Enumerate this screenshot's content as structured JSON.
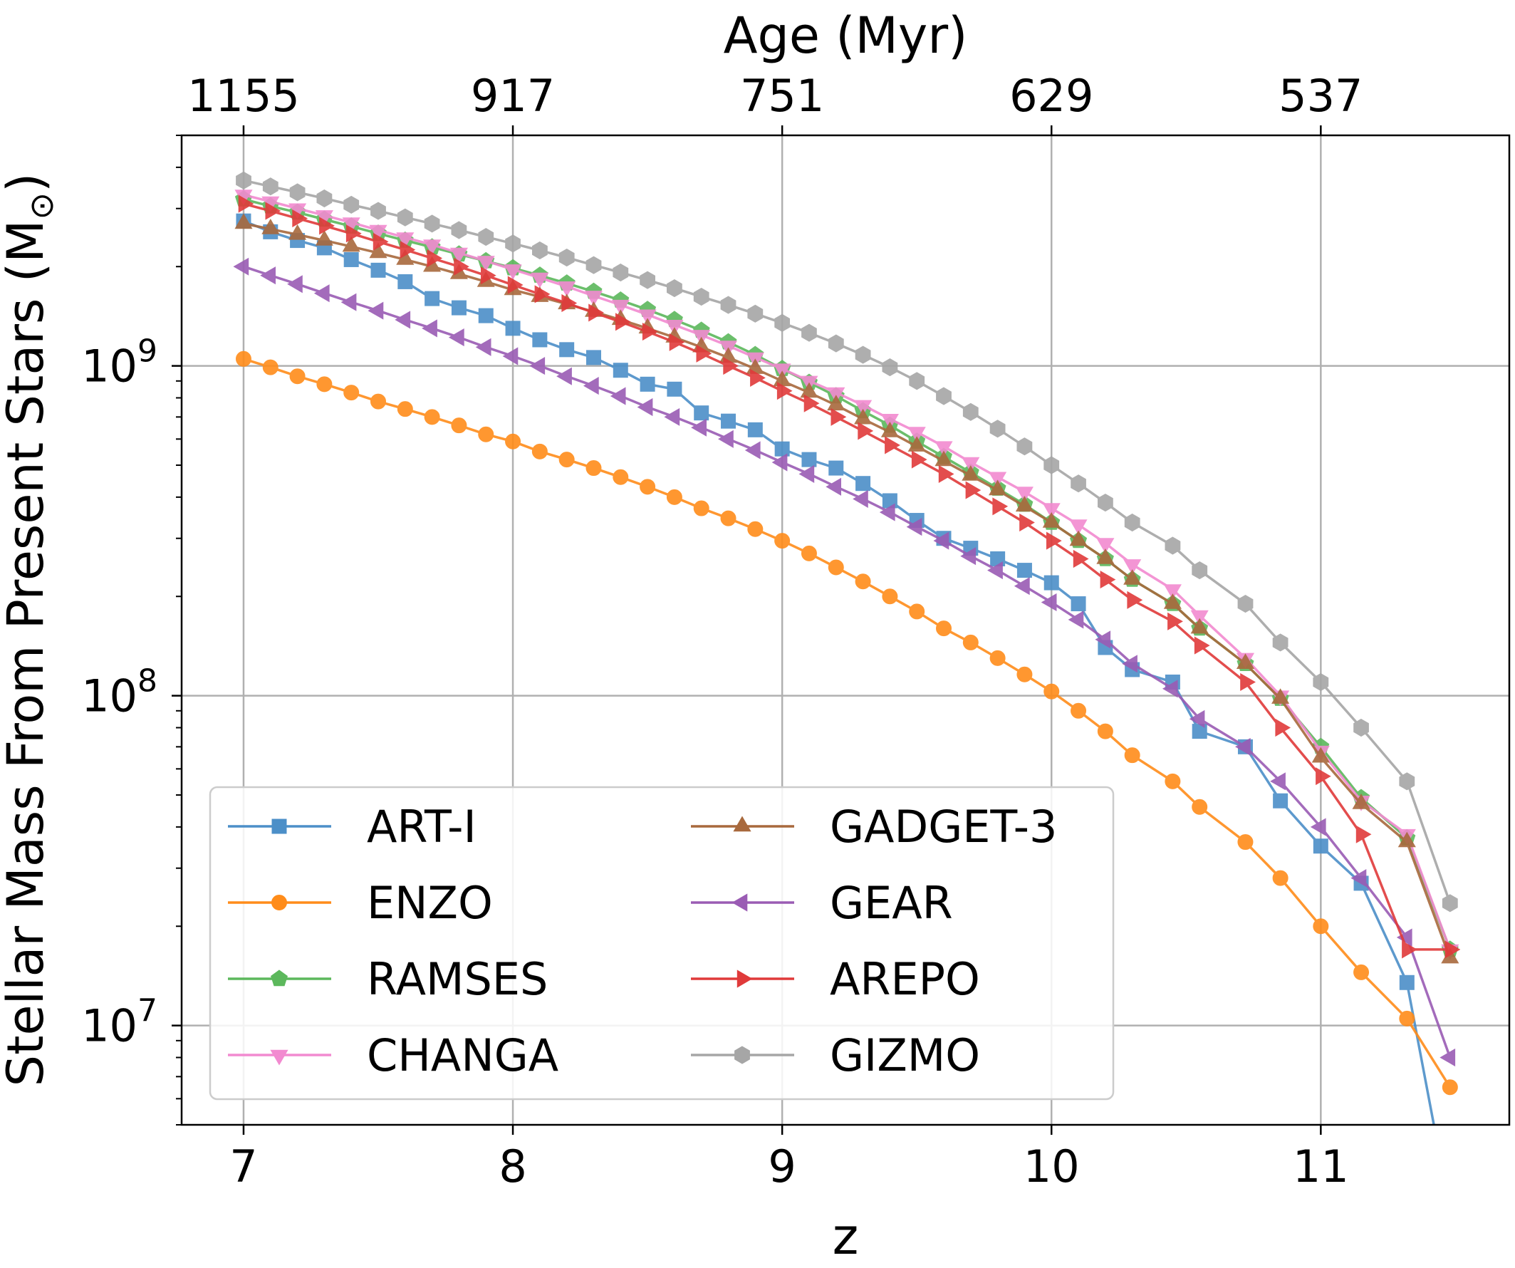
{
  "chart_data": {
    "type": "line",
    "title": "",
    "xlabel": "z",
    "ylabel": "Stellar Mass From Present Stars (M",
    "ylabel_sub": "⊙",
    "ylabel_close": ")",
    "top_xlabel": "Age (Myr)",
    "xlim": [
      6.77,
      11.7
    ],
    "ylim": [
      5000000.0,
      5000000000.0
    ],
    "yscale": "log",
    "grid": true,
    "legend_position": "lower-left",
    "x_ticks": [
      {
        "value": 7,
        "label": "7"
      },
      {
        "value": 8,
        "label": "8"
      },
      {
        "value": 9,
        "label": "9"
      },
      {
        "value": 10,
        "label": "10"
      },
      {
        "value": 11,
        "label": "11"
      }
    ],
    "top_ticks": [
      {
        "value": 7,
        "label": "1155"
      },
      {
        "value": 8,
        "label": "917"
      },
      {
        "value": 9,
        "label": "751"
      },
      {
        "value": 10,
        "label": "629"
      },
      {
        "value": 11,
        "label": "537"
      }
    ],
    "y_ticks": [
      {
        "value": 10000000,
        "base": "10",
        "exp": "7"
      },
      {
        "value": 100000000,
        "base": "10",
        "exp": "8"
      },
      {
        "value": 1000000000,
        "base": "10",
        "exp": "9"
      }
    ],
    "series": [
      {
        "name": "ART-I",
        "color": "#4c8fc8",
        "marker": "square",
        "x": [
          7.0,
          7.1,
          7.2,
          7.3,
          7.4,
          7.5,
          7.6,
          7.7,
          7.8,
          7.9,
          8.0,
          8.1,
          8.2,
          8.3,
          8.4,
          8.5,
          8.6,
          8.7,
          8.8,
          8.9,
          9.0,
          9.1,
          9.2,
          9.3,
          9.4,
          9.5,
          9.6,
          9.7,
          9.8,
          9.9,
          10.0,
          10.1,
          10.2,
          10.3,
          10.45,
          10.55,
          10.72,
          10.85,
          11.0,
          11.15,
          11.32,
          11.42
        ],
        "y": [
          2750000000.0,
          2550000000.0,
          2400000000.0,
          2280000000.0,
          2100000000.0,
          1950000000.0,
          1800000000.0,
          1600000000.0,
          1500000000.0,
          1420000000.0,
          1300000000.0,
          1200000000.0,
          1120000000.0,
          1060000000.0,
          970000000.0,
          880000000.0,
          850000000.0,
          720000000.0,
          680000000.0,
          640000000.0,
          560000000.0,
          520000000.0,
          490000000.0,
          440000000.0,
          390000000.0,
          340000000.0,
          300000000.0,
          280000000.0,
          260000000.0,
          240000000.0,
          220000000.0,
          190000000.0,
          140000000.0,
          120000000.0,
          110000000.0,
          78000000.0,
          70000000.0,
          48000000.0,
          35000000.0,
          27000000.0,
          13500000.0,
          5000000.0
        ]
      },
      {
        "name": "ENZO",
        "color": "#ff8c1a",
        "marker": "circle",
        "x": [
          7.0,
          7.1,
          7.2,
          7.3,
          7.4,
          7.5,
          7.6,
          7.7,
          7.8,
          7.9,
          8.0,
          8.1,
          8.2,
          8.3,
          8.4,
          8.5,
          8.6,
          8.7,
          8.8,
          8.9,
          9.0,
          9.1,
          9.2,
          9.3,
          9.4,
          9.5,
          9.6,
          9.7,
          9.8,
          9.9,
          10.0,
          10.1,
          10.2,
          10.3,
          10.45,
          10.55,
          10.72,
          10.85,
          11.0,
          11.15,
          11.32,
          11.48
        ],
        "y": [
          1050000000.0,
          990000000.0,
          930000000.0,
          880000000.0,
          830000000.0,
          780000000.0,
          740000000.0,
          700000000.0,
          660000000.0,
          620000000.0,
          590000000.0,
          550000000.0,
          520000000.0,
          490000000.0,
          460000000.0,
          430000000.0,
          400000000.0,
          370000000.0,
          345000000.0,
          320000000.0,
          295000000.0,
          270000000.0,
          245000000.0,
          222000000.0,
          200000000.0,
          180000000.0,
          160000000.0,
          145000000.0,
          130000000.0,
          116000000.0,
          103000000.0,
          90000000.0,
          78000000.0,
          66000000.0,
          55000000.0,
          46000000.0,
          36000000.0,
          28000000.0,
          20000000.0,
          14500000.0,
          10500000.0,
          6500000.0
        ]
      },
      {
        "name": "RAMSES",
        "color": "#5cb85c",
        "marker": "pentagon",
        "x": [
          7.0,
          7.1,
          7.2,
          7.3,
          7.4,
          7.5,
          7.6,
          7.7,
          7.8,
          7.9,
          8.0,
          8.1,
          8.2,
          8.3,
          8.4,
          8.5,
          8.6,
          8.7,
          8.8,
          8.9,
          9.0,
          9.1,
          9.2,
          9.3,
          9.4,
          9.5,
          9.6,
          9.7,
          9.8,
          9.9,
          10.0,
          10.1,
          10.2,
          10.3,
          10.45,
          10.55,
          10.72,
          10.85,
          11.0,
          11.15,
          11.32,
          11.48
        ],
        "y": [
          3200000000.0,
          3050000000.0,
          2920000000.0,
          2780000000.0,
          2650000000.0,
          2520000000.0,
          2400000000.0,
          2290000000.0,
          2180000000.0,
          2080000000.0,
          1980000000.0,
          1880000000.0,
          1780000000.0,
          1680000000.0,
          1580000000.0,
          1480000000.0,
          1380000000.0,
          1280000000.0,
          1180000000.0,
          1080000000.0,
          980000000.0,
          890000000.0,
          810000000.0,
          730000000.0,
          660000000.0,
          590000000.0,
          530000000.0,
          475000000.0,
          425000000.0,
          380000000.0,
          335000000.0,
          295000000.0,
          260000000.0,
          225000000.0,
          190000000.0,
          160000000.0,
          125000000.0,
          98000000.0,
          70000000.0,
          49000000.0,
          37000000.0,
          17000000.0
        ]
      },
      {
        "name": "CHANGA",
        "color": "#f28ad0",
        "marker": "triangle-down",
        "x": [
          7.0,
          7.1,
          7.2,
          7.3,
          7.4,
          7.5,
          7.6,
          7.7,
          7.8,
          7.9,
          8.0,
          8.1,
          8.2,
          8.3,
          8.4,
          8.5,
          8.6,
          8.7,
          8.8,
          8.9,
          9.0,
          9.1,
          9.2,
          9.3,
          9.4,
          9.5,
          9.6,
          9.7,
          9.8,
          9.9,
          10.0,
          10.1,
          10.2,
          10.3,
          10.45,
          10.55,
          10.72,
          10.85,
          11.0,
          11.15,
          11.32,
          11.48
        ],
        "y": [
          3300000000.0,
          3150000000.0,
          3000000000.0,
          2860000000.0,
          2720000000.0,
          2580000000.0,
          2450000000.0,
          2330000000.0,
          2200000000.0,
          2080000000.0,
          1960000000.0,
          1850000000.0,
          1740000000.0,
          1630000000.0,
          1530000000.0,
          1430000000.0,
          1330000000.0,
          1240000000.0,
          1150000000.0,
          1060000000.0,
          980000000.0,
          900000000.0,
          830000000.0,
          760000000.0,
          690000000.0,
          630000000.0,
          570000000.0,
          510000000.0,
          460000000.0,
          415000000.0,
          370000000.0,
          330000000.0,
          290000000.0,
          250000000.0,
          210000000.0,
          175000000.0,
          130000000.0,
          100000000.0,
          68000000.0,
          48000000.0,
          38000000.0,
          17000000.0
        ]
      },
      {
        "name": "GADGET-3",
        "color": "#a8693d",
        "marker": "triangle-up",
        "x": [
          7.0,
          7.1,
          7.2,
          7.3,
          7.4,
          7.5,
          7.6,
          7.7,
          7.8,
          7.9,
          8.0,
          8.1,
          8.2,
          8.3,
          8.4,
          8.5,
          8.6,
          8.7,
          8.8,
          8.9,
          9.0,
          9.1,
          9.2,
          9.3,
          9.4,
          9.5,
          9.6,
          9.7,
          9.8,
          9.9,
          10.0,
          10.1,
          10.2,
          10.3,
          10.45,
          10.55,
          10.72,
          10.85,
          11.0,
          11.15,
          11.32,
          11.48
        ],
        "y": [
          2700000000.0,
          2600000000.0,
          2500000000.0,
          2400000000.0,
          2300000000.0,
          2200000000.0,
          2100000000.0,
          2000000000.0,
          1900000000.0,
          1800000000.0,
          1700000000.0,
          1620000000.0,
          1540000000.0,
          1460000000.0,
          1380000000.0,
          1300000000.0,
          1220000000.0,
          1140000000.0,
          1060000000.0,
          980000000.0,
          900000000.0,
          830000000.0,
          760000000.0,
          690000000.0,
          630000000.0,
          570000000.0,
          515000000.0,
          465000000.0,
          420000000.0,
          375000000.0,
          335000000.0,
          295000000.0,
          260000000.0,
          225000000.0,
          190000000.0,
          160000000.0,
          125000000.0,
          98000000.0,
          65000000.0,
          47000000.0,
          36000000.0,
          16000000.0
        ]
      },
      {
        "name": "GEAR",
        "color": "#9a5cb4",
        "marker": "triangle-left",
        "x": [
          7.0,
          7.1,
          7.2,
          7.3,
          7.4,
          7.5,
          7.6,
          7.7,
          7.8,
          7.9,
          8.0,
          8.1,
          8.2,
          8.3,
          8.4,
          8.5,
          8.6,
          8.7,
          8.8,
          8.9,
          9.0,
          9.1,
          9.2,
          9.3,
          9.4,
          9.5,
          9.6,
          9.7,
          9.8,
          9.9,
          10.0,
          10.1,
          10.2,
          10.3,
          10.45,
          10.55,
          10.72,
          10.85,
          11.0,
          11.15,
          11.32,
          11.48
        ],
        "y": [
          2000000000.0,
          1880000000.0,
          1770000000.0,
          1660000000.0,
          1560000000.0,
          1470000000.0,
          1380000000.0,
          1300000000.0,
          1220000000.0,
          1140000000.0,
          1070000000.0,
          1000000000.0,
          930000000.0,
          870000000.0,
          810000000.0,
          750000000.0,
          700000000.0,
          650000000.0,
          600000000.0,
          555000000.0,
          510000000.0,
          470000000.0,
          430000000.0,
          395000000.0,
          360000000.0,
          325000000.0,
          295000000.0,
          265000000.0,
          240000000.0,
          215000000.0,
          192000000.0,
          170000000.0,
          148000000.0,
          125000000.0,
          105000000.0,
          85000000.0,
          70000000.0,
          55000000.0,
          40000000.0,
          28000000.0,
          18500000.0,
          8000000.0
        ]
      },
      {
        "name": "AREPO",
        "color": "#e03a3a",
        "marker": "triangle-right",
        "x": [
          7.0,
          7.1,
          7.2,
          7.3,
          7.4,
          7.5,
          7.6,
          7.7,
          7.8,
          7.9,
          8.0,
          8.1,
          8.2,
          8.3,
          8.4,
          8.5,
          8.6,
          8.7,
          8.8,
          8.9,
          9.0,
          9.1,
          9.2,
          9.3,
          9.4,
          9.5,
          9.6,
          9.7,
          9.8,
          9.9,
          10.0,
          10.1,
          10.2,
          10.3,
          10.45,
          10.55,
          10.72,
          10.85,
          11.0,
          11.15,
          11.32,
          11.48
        ],
        "y": [
          3100000000.0,
          2950000000.0,
          2800000000.0,
          2660000000.0,
          2520000000.0,
          2380000000.0,
          2250000000.0,
          2120000000.0,
          2000000000.0,
          1880000000.0,
          1760000000.0,
          1650000000.0,
          1550000000.0,
          1450000000.0,
          1360000000.0,
          1270000000.0,
          1180000000.0,
          1090000000.0,
          1000000000.0,
          920000000.0,
          840000000.0,
          770000000.0,
          700000000.0,
          635000000.0,
          575000000.0,
          520000000.0,
          470000000.0,
          420000000.0,
          375000000.0,
          335000000.0,
          295000000.0,
          260000000.0,
          225000000.0,
          195000000.0,
          168000000.0,
          142000000.0,
          110000000.0,
          80000000.0,
          57000000.0,
          38000000.0,
          17000000.0,
          17000000.0
        ]
      },
      {
        "name": "GIZMO",
        "color": "#a6a6a6",
        "marker": "hexagon",
        "x": [
          7.0,
          7.1,
          7.2,
          7.3,
          7.4,
          7.5,
          7.6,
          7.7,
          7.8,
          7.9,
          8.0,
          8.1,
          8.2,
          8.3,
          8.4,
          8.5,
          8.6,
          8.7,
          8.8,
          8.9,
          9.0,
          9.1,
          9.2,
          9.3,
          9.4,
          9.5,
          9.6,
          9.7,
          9.8,
          9.9,
          10.0,
          10.1,
          10.2,
          10.3,
          10.45,
          10.55,
          10.72,
          10.85,
          11.0,
          11.15,
          11.32,
          11.48
        ],
        "y": [
          3650000000.0,
          3500000000.0,
          3360000000.0,
          3220000000.0,
          3080000000.0,
          2950000000.0,
          2820000000.0,
          2700000000.0,
          2580000000.0,
          2460000000.0,
          2350000000.0,
          2240000000.0,
          2130000000.0,
          2020000000.0,
          1920000000.0,
          1820000000.0,
          1720000000.0,
          1620000000.0,
          1530000000.0,
          1440000000.0,
          1350000000.0,
          1260000000.0,
          1170000000.0,
          1080000000.0,
          990000000.0,
          900000000.0,
          810000000.0,
          725000000.0,
          645000000.0,
          570000000.0,
          500000000.0,
          440000000.0,
          385000000.0,
          335000000.0,
          285000000.0,
          240000000.0,
          190000000.0,
          145000000.0,
          110000000.0,
          80000000.0,
          55000000.0,
          23500000.0
        ]
      }
    ]
  }
}
